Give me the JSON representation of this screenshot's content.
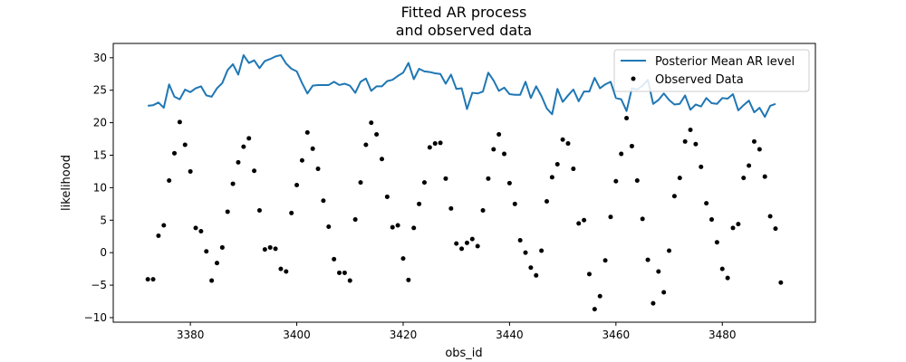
{
  "chart_data": {
    "type": "line+scatter",
    "title": [
      "Fitted AR process",
      "and observed data"
    ],
    "xlabel": "obs_id",
    "ylabel": "likelihood",
    "xlim": [
      3365.5,
      3497.5
    ],
    "ylim": [
      -10.7,
      32.2
    ],
    "xticks": [
      3380,
      3400,
      3420,
      3440,
      3460,
      3480
    ],
    "yticks": [
      -10,
      -5,
      0,
      5,
      10,
      15,
      20,
      25,
      30
    ],
    "grid": false,
    "legend_position": "top-right",
    "colors": {
      "line": "#1f77b4",
      "points": "#000000"
    },
    "x_start": 3372,
    "series": [
      {
        "name": "Posterior Mean AR level",
        "kind": "line",
        "values": [
          22.6,
          22.7,
          23.1,
          22.3,
          25.9,
          24.0,
          23.6,
          25.1,
          24.7,
          25.3,
          25.6,
          24.2,
          24.0,
          25.3,
          26.1,
          28.1,
          29.0,
          27.4,
          30.4,
          29.2,
          29.6,
          28.4,
          29.5,
          29.8,
          30.2,
          30.4,
          29.1,
          28.3,
          27.9,
          26.1,
          24.5,
          25.7,
          25.8,
          25.8,
          25.8,
          26.3,
          25.8,
          26.0,
          25.7,
          24.6,
          26.3,
          26.8,
          24.9,
          25.6,
          25.6,
          26.4,
          26.6,
          27.2,
          27.7,
          29.2,
          26.7,
          28.3,
          27.9,
          27.8,
          27.6,
          27.5,
          26.0,
          27.4,
          25.2,
          25.3,
          22.1,
          24.6,
          24.5,
          24.8,
          27.7,
          26.5,
          24.9,
          25.4,
          24.4,
          24.3,
          24.3,
          26.3,
          23.8,
          25.6,
          24.1,
          22.2,
          21.3,
          25.2,
          23.2,
          24.2,
          25.1,
          23.3,
          24.8,
          24.8,
          26.9,
          25.3,
          25.9,
          26.3,
          23.8,
          23.6,
          21.8,
          25.3,
          25.1,
          25.7,
          26.6,
          22.9,
          23.5,
          24.5,
          23.5,
          22.8,
          22.9,
          24.2,
          22.0,
          22.8,
          22.5,
          23.8,
          23.0,
          22.9,
          23.8,
          23.7,
          24.4,
          21.9,
          22.7,
          23.4,
          21.6,
          22.3,
          20.9,
          22.6,
          22.9
        ]
      },
      {
        "name": "Observed Data",
        "kind": "scatter",
        "values": [
          -4.1,
          -4.1,
          2.6,
          4.2,
          11.1,
          15.3,
          20.1,
          16.6,
          12.5,
          3.8,
          3.3,
          0.2,
          -4.3,
          -1.6,
          0.8,
          6.3,
          10.6,
          13.9,
          16.3,
          17.6,
          12.6,
          6.5,
          0.5,
          0.8,
          0.6,
          -2.5,
          -2.9,
          6.1,
          10.4,
          14.2,
          18.5,
          16.0,
          12.9,
          8.0,
          4.0,
          -1.0,
          -3.1,
          -3.1,
          -4.3,
          5.1,
          10.8,
          16.6,
          20.0,
          18.2,
          14.4,
          8.6,
          3.9,
          4.2,
          -0.9,
          -4.2,
          3.8,
          7.5,
          10.8,
          16.2,
          16.8,
          16.9,
          11.4,
          6.8,
          1.4,
          0.6,
          1.5,
          2.1,
          1.0,
          6.5,
          11.4,
          15.9,
          18.2,
          15.2,
          10.7,
          7.5,
          1.9,
          0.0,
          -2.3,
          -3.5,
          0.3,
          7.9,
          11.6,
          13.6,
          17.4,
          16.8,
          12.9,
          4.5,
          5.0,
          -3.3,
          -8.7,
          -6.7,
          -1.2,
          5.5,
          11.0,
          15.2,
          20.7,
          16.4,
          11.1,
          5.2,
          -1.1,
          -7.8,
          -2.9,
          -6.1,
          0.3,
          8.7,
          11.5,
          17.1,
          18.9,
          16.7,
          13.2,
          7.6,
          5.1,
          1.6,
          -2.5,
          -3.9,
          3.8,
          4.4,
          11.5,
          13.4,
          17.1,
          15.9,
          11.7,
          5.6,
          3.7,
          -4.6
        ]
      }
    ]
  }
}
